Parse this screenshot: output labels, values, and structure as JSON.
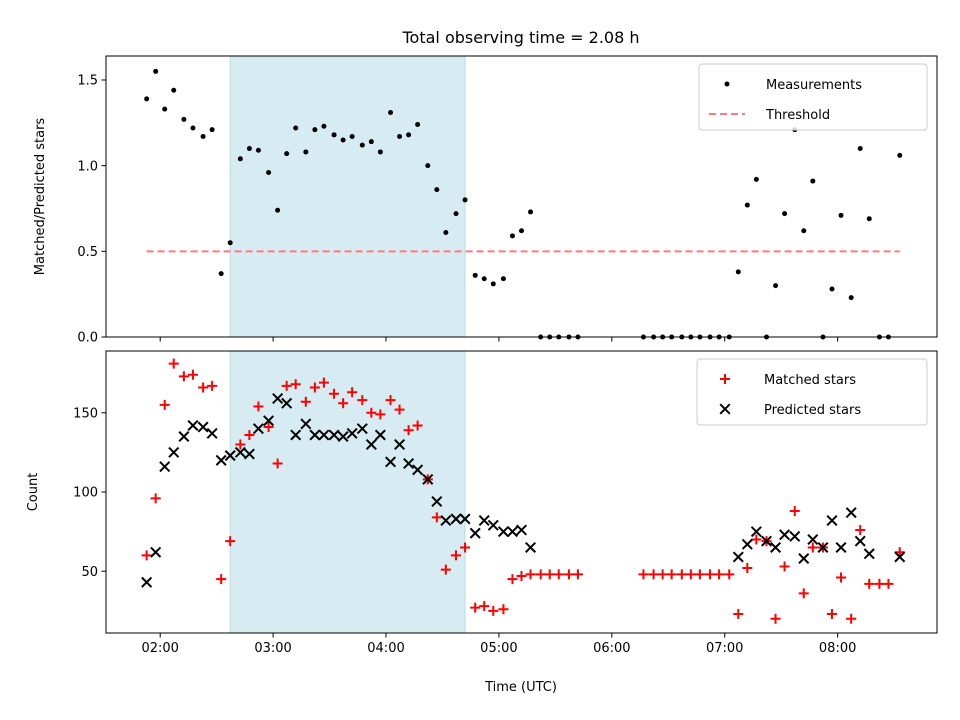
{
  "chart_data": {
    "title": "Total observing time = 2.08 h",
    "xlabel": "Time (UTC)",
    "xlim": [
      1.52,
      8.88
    ],
    "x_ticks": [
      {
        "v": 2,
        "label": "02:00"
      },
      {
        "v": 3,
        "label": "03:00"
      },
      {
        "v": 4,
        "label": "04:00"
      },
      {
        "v": 5,
        "label": "05:00"
      },
      {
        "v": 6,
        "label": "06:00"
      },
      {
        "v": 7,
        "label": "07:00"
      },
      {
        "v": 8,
        "label": "08:00"
      }
    ],
    "shaded_interval": {
      "x": [
        2.62,
        4.7
      ],
      "color": "#add8e6"
    },
    "panels": [
      {
        "type": "scatter",
        "ylabel": "Matched/Predicted stars",
        "ylim": [
          0,
          1.64
        ],
        "y_ticks": [
          0.0,
          0.5,
          1.0,
          1.5
        ],
        "y_tick_labels": [
          "0.0",
          "0.5",
          "1.0",
          "1.5"
        ],
        "legend": "top-right",
        "series": [
          {
            "name": "Measurements",
            "marker": "dot",
            "color": "#000000",
            "x": [
              1.88,
              1.96,
              2.04,
              2.12,
              2.21,
              2.29,
              2.38,
              2.46,
              2.54,
              2.62,
              2.71,
              2.79,
              2.87,
              2.96,
              3.04,
              3.12,
              3.2,
              3.29,
              3.37,
              3.45,
              3.54,
              3.62,
              3.7,
              3.79,
              3.87,
              3.95,
              4.04,
              4.12,
              4.2,
              4.28,
              4.37,
              4.45,
              4.53,
              4.62,
              4.7,
              4.79,
              4.87,
              4.95,
              5.04,
              5.12,
              5.2,
              5.28,
              5.37,
              5.45,
              5.53,
              5.62,
              5.7,
              6.28,
              6.37,
              6.45,
              6.53,
              6.62,
              6.7,
              6.78,
              6.87,
              6.95,
              7.04,
              7.12,
              7.2,
              7.28,
              7.37,
              7.45,
              7.53,
              7.62,
              7.7,
              7.78,
              7.87,
              7.95,
              8.03,
              8.12,
              8.2,
              8.28,
              8.37,
              8.45,
              8.55
            ],
            "y": [
              1.39,
              1.55,
              1.33,
              1.44,
              1.27,
              1.22,
              1.17,
              1.21,
              0.37,
              0.55,
              1.04,
              1.1,
              1.09,
              0.96,
              0.74,
              1.07,
              1.22,
              1.08,
              1.21,
              1.23,
              1.18,
              1.15,
              1.17,
              1.12,
              1.14,
              1.08,
              1.31,
              1.17,
              1.18,
              1.24,
              1.0,
              0.86,
              0.61,
              0.72,
              0.8,
              0.36,
              0.34,
              0.31,
              0.34,
              0.59,
              0.62,
              0.73,
              0,
              0,
              0,
              0,
              0,
              0,
              0,
              0,
              0,
              0,
              0,
              0,
              0,
              0,
              0,
              0.38,
              0.77,
              0.92,
              0,
              0.3,
              0.72,
              1.21,
              0.62,
              0.91,
              0,
              0.28,
              0.71,
              0.23,
              1.1,
              0.69,
              0,
              0,
              1.06
            ]
          },
          {
            "name": "Threshold",
            "type": "line",
            "style": "dashed",
            "color": "#ff7b7b",
            "x": [
              1.88,
              8.55
            ],
            "y": [
              0.5,
              0.5
            ]
          }
        ]
      },
      {
        "type": "scatter",
        "ylabel": "Count",
        "ylim": [
          11,
          189
        ],
        "y_ticks": [
          50,
          100,
          150
        ],
        "y_tick_labels": [
          "50",
          "100",
          "150"
        ],
        "legend": "top-right",
        "series": [
          {
            "name": "Matched stars",
            "marker": "plus",
            "color": "#ff0000",
            "x": [
              1.88,
              1.96,
              2.04,
              2.12,
              2.21,
              2.29,
              2.38,
              2.46,
              2.54,
              2.62,
              2.71,
              2.79,
              2.87,
              2.96,
              3.04,
              3.12,
              3.2,
              3.29,
              3.37,
              3.45,
              3.54,
              3.62,
              3.7,
              3.79,
              3.87,
              3.95,
              4.04,
              4.12,
              4.2,
              4.28,
              4.37,
              4.45,
              4.53,
              4.62,
              4.7,
              4.79,
              4.87,
              4.95,
              5.04,
              5.12,
              5.2,
              5.28,
              5.37,
              5.45,
              5.53,
              5.62,
              5.7,
              6.28,
              6.37,
              6.45,
              6.53,
              6.62,
              6.7,
              6.78,
              6.87,
              6.95,
              7.04,
              7.12,
              7.2,
              7.28,
              7.37,
              7.45,
              7.53,
              7.62,
              7.7,
              7.78,
              7.87,
              7.95,
              8.03,
              8.12,
              8.2,
              8.28,
              8.37,
              8.45,
              8.55
            ],
            "y": [
              60,
              96,
              155,
              181,
              173,
              174,
              166,
              167,
              45,
              69,
              130,
              136,
              154,
              141,
              118,
              167,
              168,
              157,
              166,
              169,
              162,
              156,
              163,
              158,
              150,
              149,
              158,
              152,
              139,
              142,
              108,
              84,
              51,
              60,
              65,
              27,
              28,
              25,
              26,
              45,
              47,
              48,
              48,
              48,
              48,
              48,
              48,
              48,
              48,
              48,
              48,
              48,
              48,
              48,
              48,
              48,
              48,
              23,
              52,
              70,
              69,
              20,
              53,
              88,
              36,
              65,
              65,
              23,
              46,
              20,
              76,
              42,
              42,
              42,
              62
            ]
          },
          {
            "name": "Predicted stars",
            "marker": "x",
            "color": "#000000",
            "x": [
              1.88,
              1.96,
              2.04,
              2.12,
              2.21,
              2.29,
              2.38,
              2.46,
              2.54,
              2.62,
              2.71,
              2.79,
              2.87,
              2.96,
              3.04,
              3.12,
              3.2,
              3.29,
              3.37,
              3.45,
              3.54,
              3.62,
              3.7,
              3.79,
              3.87,
              3.95,
              4.04,
              4.12,
              4.2,
              4.28,
              4.37,
              4.45,
              4.53,
              4.62,
              4.7,
              4.79,
              4.87,
              4.95,
              5.04,
              5.12,
              5.2,
              5.28,
              7.12,
              7.2,
              7.28,
              7.37,
              7.45,
              7.53,
              7.62,
              7.7,
              7.78,
              7.87,
              7.95,
              8.03,
              8.12,
              8.2,
              8.28,
              8.55
            ],
            "y": [
              43,
              62,
              116,
              125,
              135,
              142,
              141,
              137,
              120,
              123,
              125,
              124,
              140,
              145,
              159,
              156,
              136,
              143,
              136,
              136,
              136,
              135,
              137,
              140,
              130,
              136,
              119,
              130,
              118,
              114,
              108,
              94,
              82,
              83,
              83,
              74,
              82,
              79,
              75,
              75,
              76,
              65,
              59,
              67,
              75,
              69,
              65,
              73,
              72,
              58,
              70,
              65,
              82,
              65,
              87,
              69,
              61,
              59
            ]
          }
        ]
      }
    ]
  }
}
